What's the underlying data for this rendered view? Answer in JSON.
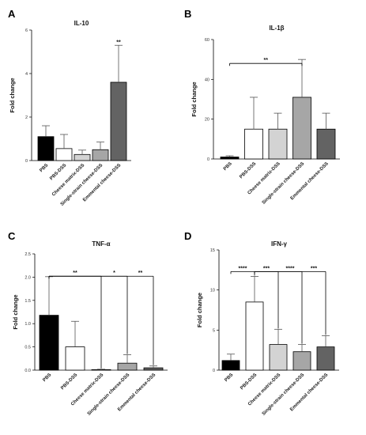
{
  "chart_data": [
    {
      "panel": "A",
      "type": "bar",
      "title": "IL-10",
      "ylabel": "Fold change",
      "ylim": [
        0,
        6
      ],
      "yticks": [
        0,
        2,
        4,
        6
      ],
      "categories": [
        "PBS",
        "PBS-DSS",
        "Cheese matrix-DSS",
        "Single-strain cheese-DSS",
        "Emmental cheese-DSS"
      ],
      "values": [
        1.1,
        0.55,
        0.28,
        0.5,
        3.6
      ],
      "errors": [
        0.5,
        0.65,
        0.2,
        0.35,
        1.7
      ],
      "colors": [
        "#000000",
        "#ffffff",
        "#d3d3d3",
        "#a6a6a6",
        "#636363"
      ],
      "annotations": [
        {
          "text": "**",
          "category": "Emmental cheese-DSS"
        }
      ]
    },
    {
      "panel": "B",
      "type": "bar",
      "title": "IL-1β",
      "ylabel": "Fold change",
      "ylim": [
        0,
        60
      ],
      "yticks": [
        0,
        20,
        40,
        60
      ],
      "categories": [
        "PBS",
        "PBS-DSS",
        "Cheese matrix-DSS",
        "Single-strain cheese-DSS",
        "Emmental cheese-DSS"
      ],
      "values": [
        1,
        15,
        15,
        31,
        15
      ],
      "errors": [
        0.6,
        16,
        8,
        19,
        8
      ],
      "colors": [
        "#000000",
        "#ffffff",
        "#d3d3d3",
        "#a6a6a6",
        "#636363"
      ],
      "brackets": [
        {
          "from": "PBS",
          "to": "Single-strain cheese-DSS",
          "text": "**"
        }
      ]
    },
    {
      "panel": "C",
      "type": "bar",
      "title": "TNF-α",
      "ylabel": "Fold change",
      "ylim": [
        0,
        2.5
      ],
      "yticks": [
        "0.0",
        "0.5",
        "1.0",
        "1.5",
        "2.0",
        "2.5"
      ],
      "categories": [
        "PBS",
        "PBS-DSS",
        "Cheese matrix-DSS",
        "Single-strain cheese-DSS",
        "Emmental cheese-DSS"
      ],
      "values": [
        1.18,
        0.5,
        0.01,
        0.15,
        0.05
      ],
      "errors": [
        0.83,
        0.55,
        0.01,
        0.18,
        0.04
      ],
      "colors": [
        "#000000",
        "#ffffff",
        "#d3d3d3",
        "#a6a6a6",
        "#636363"
      ],
      "brackets": [
        {
          "from": "PBS",
          "to": "Cheese matrix-DSS",
          "text": "**"
        },
        {
          "from": "PBS",
          "to": "Single-strain cheese-DSS",
          "text": "*"
        },
        {
          "from": "PBS",
          "to": "Emmental cheese-DSS",
          "text": "**"
        }
      ]
    },
    {
      "panel": "D",
      "type": "bar",
      "title": "IFN-γ",
      "ylabel": "Fold change",
      "ylim": [
        0,
        15
      ],
      "yticks": [
        0,
        5,
        10,
        15
      ],
      "categories": [
        "PBS",
        "PBS-DSS",
        "Cheese matrix-DSS",
        "Single-strain cheese-DSS",
        "Emmental cheese-DSS"
      ],
      "values": [
        1.2,
        8.5,
        3.2,
        2.3,
        2.9
      ],
      "errors": [
        0.8,
        3.2,
        1.9,
        0.9,
        1.4
      ],
      "colors": [
        "#000000",
        "#ffffff",
        "#d3d3d3",
        "#a6a6a6",
        "#636363"
      ],
      "brackets": [
        {
          "from": "PBS",
          "to": "PBS-DSS",
          "text": "****"
        },
        {
          "from": "PBS-DSS",
          "to": "Cheese matrix-DSS",
          "text": "***"
        },
        {
          "from": "PBS-DSS",
          "to": "Single-strain cheese-DSS",
          "text": "****"
        },
        {
          "from": "PBS-DSS",
          "to": "Emmental cheese-DSS",
          "text": "***"
        }
      ]
    }
  ]
}
